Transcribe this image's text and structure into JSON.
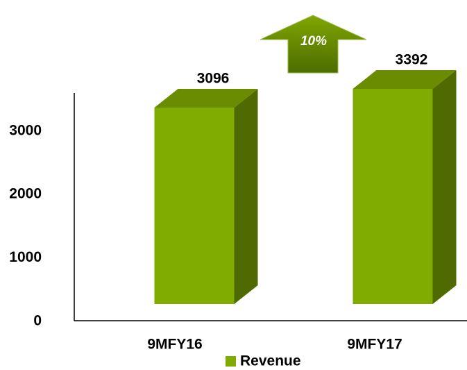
{
  "chart_data": {
    "type": "bar3d",
    "categories": [
      "9MFY16",
      "9MFY17"
    ],
    "series": [
      {
        "name": "Revenue",
        "color": "#80ab00",
        "values": [
          3096,
          3392
        ]
      }
    ],
    "ylim": [
      0,
      3600
    ],
    "yticks": [
      0,
      1000,
      2000,
      3000
    ],
    "legend": "bottom",
    "annotations": [
      {
        "text": "10%"
      }
    ]
  }
}
